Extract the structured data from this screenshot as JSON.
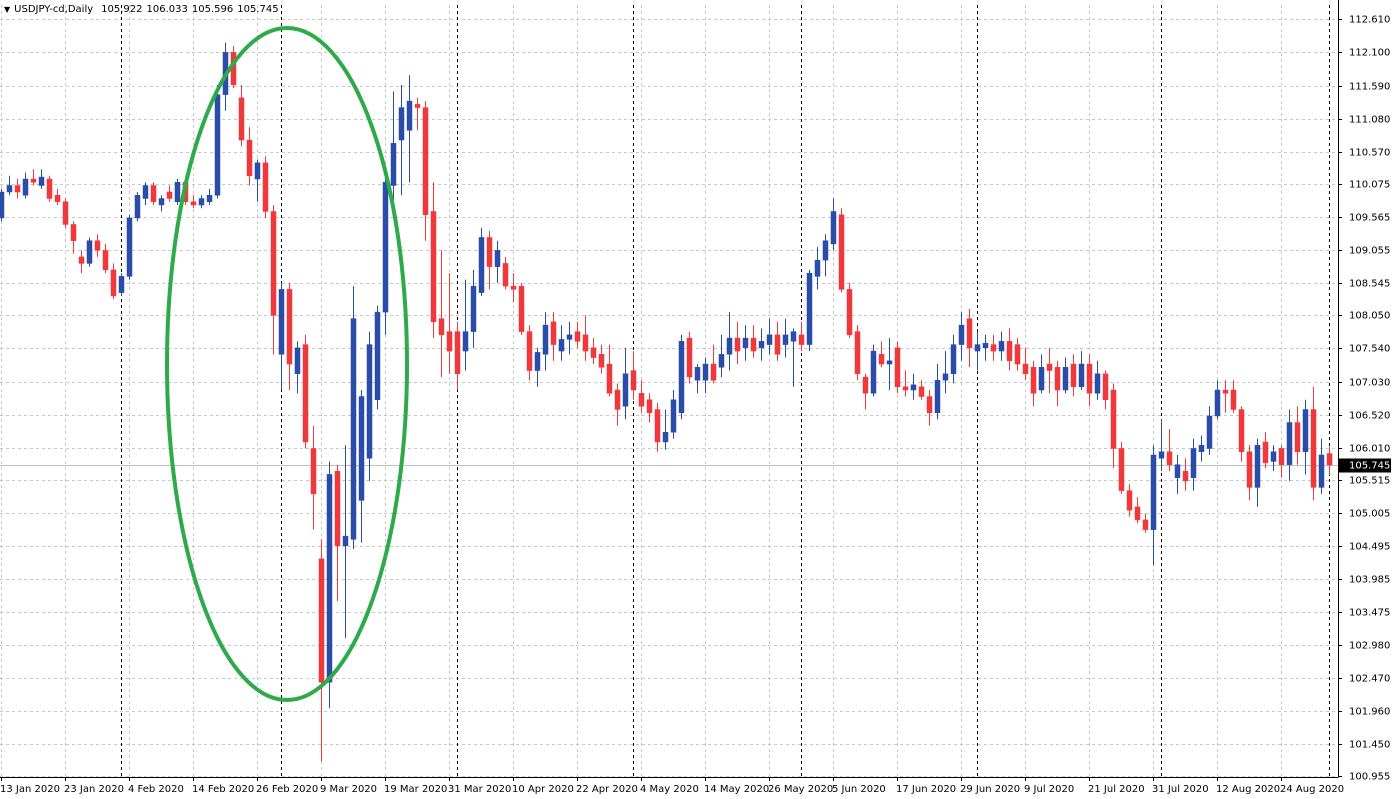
{
  "chart_data": {
    "type": "candlestick",
    "title": "USDJPY-cd,Daily",
    "categories": [
      "13 Jan 2020",
      null,
      null,
      null,
      null,
      null,
      null,
      null,
      "23 Jan 2020",
      null,
      null,
      null,
      null,
      null,
      null,
      null,
      "4 Feb 2020",
      null,
      null,
      null,
      null,
      null,
      null,
      null,
      "14 Feb 2020",
      null,
      null,
      null,
      null,
      null,
      null,
      null,
      "26 Feb 2020",
      null,
      null,
      null,
      null,
      null,
      null,
      null,
      "9 Mar 2020",
      null,
      null,
      null,
      null,
      null,
      null,
      null,
      "19 Mar 2020",
      null,
      null,
      null,
      null,
      null,
      null,
      null,
      "31 Mar 2020",
      null,
      null,
      null,
      null,
      null,
      null,
      null,
      "10 Apr 2020",
      null,
      null,
      null,
      null,
      null,
      null,
      null,
      "22 Apr 2020",
      null,
      null,
      null,
      null,
      null,
      null,
      null,
      "4 May 2020",
      null,
      null,
      null,
      null,
      null,
      null,
      null,
      "14 May 2020",
      null,
      null,
      null,
      null,
      null,
      null,
      null,
      "26 May 2020",
      null,
      null,
      null,
      null,
      null,
      null,
      null,
      "5 Jun 2020",
      null,
      null,
      null,
      null,
      null,
      null,
      null,
      "17 Jun 2020",
      null,
      null,
      null,
      null,
      null,
      null,
      null,
      "29 Jun 2020",
      null,
      null,
      null,
      null,
      null,
      null,
      null,
      "9 Jul 2020",
      null,
      null,
      null,
      null,
      null,
      null,
      null,
      "21 Jul 2020",
      null,
      null,
      null,
      null,
      null,
      null,
      null,
      "31 Jul 2020",
      null,
      null,
      null,
      null,
      null,
      null,
      null,
      "12 Aug 2020",
      null,
      null,
      null,
      null,
      null,
      null,
      null,
      "24 Aug 2020",
      null,
      null,
      null,
      null,
      null,
      null
    ],
    "open": [
      109.55,
      109.95,
      110.05,
      109.9,
      110.15,
      110.05,
      110.15,
      109.9,
      109.8,
      109.45,
      108.95,
      108.85,
      109.2,
      109.05,
      108.75,
      108.4,
      108.65,
      109.55,
      109.85,
      110.05,
      109.75,
      109.95,
      109.8,
      110.1,
      109.8,
      109.75,
      109.8,
      109.9,
      111.45,
      112.1,
      111.4,
      110.75,
      110.15,
      110.4,
      109.65,
      107.45,
      108.45,
      107.15,
      107.6,
      106.0,
      104.3,
      102.4,
      105.65,
      104.5,
      104.6,
      105.2,
      105.85,
      106.75,
      108.1,
      110.05,
      110.75,
      110.9,
      111.3,
      111.25,
      109.65,
      108.0,
      107.8,
      107.8,
      107.5,
      107.8,
      108.4,
      109.25,
      108.8,
      108.85,
      108.5,
      108.5,
      107.8,
      107.2,
      107.45,
      107.95,
      107.5,
      107.68,
      107.8,
      107.75,
      107.55,
      107.45,
      107.3,
      106.9,
      106.65,
      107.2,
      106.85,
      106.75,
      106.6,
      106.1,
      106.25,
      106.55,
      107.7,
      107.05,
      107.05,
      107.3,
      107.25,
      107.45,
      107.7,
      107.55,
      107.7,
      107.55,
      107.6,
      107.75,
      107.6,
      107.65,
      107.75,
      107.6,
      108.65,
      108.9,
      109.15,
      109.6,
      108.45,
      107.8,
      107.1,
      106.85,
      107.45,
      107.3,
      107.55,
      106.95,
      106.9,
      106.95,
      106.8,
      106.55,
      107.05,
      107.15,
      107.6,
      108.0,
      107.5,
      107.55,
      107.6,
      107.5,
      107.65,
      107.6,
      107.3,
      107.25,
      106.9,
      107.3,
      107.25,
      106.9,
      107.3,
      106.95,
      107.3,
      106.85,
      107.15,
      106.9,
      106.0,
      105.35,
      105.1,
      104.9,
      104.75,
      105.85,
      105.95,
      105.55,
      105.65,
      105.55,
      105.95,
      106.0,
      106.5,
      106.9,
      106.9,
      106.6,
      105.95,
      105.4,
      106.1,
      105.8,
      106.0,
      105.75,
      106.4,
      105.95,
      106.6,
      105.4,
      105.922
    ],
    "high": [
      110.0,
      110.2,
      110.15,
      110.25,
      110.3,
      110.3,
      110.2,
      110.0,
      109.85,
      109.5,
      109.05,
      109.25,
      109.3,
      109.15,
      108.85,
      108.7,
      109.6,
      109.95,
      110.1,
      110.1,
      109.9,
      110.05,
      110.15,
      110.15,
      109.9,
      109.9,
      110.0,
      111.6,
      112.25,
      112.2,
      111.6,
      110.95,
      110.45,
      110.5,
      109.75,
      108.55,
      108.55,
      107.65,
      107.75,
      106.35,
      104.6,
      105.8,
      105.75,
      106.05,
      108.5,
      106.9,
      107.8,
      108.2,
      110.35,
      111.5,
      111.6,
      111.75,
      111.4,
      111.35,
      110.1,
      109.05,
      108.7,
      107.95,
      108.6,
      108.75,
      109.4,
      109.35,
      109.2,
      108.95,
      108.7,
      108.55,
      107.9,
      107.55,
      108.1,
      108.1,
      107.9,
      107.95,
      107.95,
      108.05,
      107.7,
      107.6,
      107.6,
      107.0,
      107.55,
      107.5,
      107.05,
      106.85,
      106.7,
      106.6,
      106.9,
      107.75,
      107.8,
      107.3,
      107.4,
      107.6,
      107.75,
      108.1,
      107.95,
      107.9,
      107.9,
      107.85,
      108.0,
      107.95,
      108.0,
      107.85,
      107.95,
      108.75,
      109.1,
      109.3,
      109.85,
      109.7,
      108.55,
      107.9,
      107.15,
      107.6,
      107.65,
      107.7,
      107.65,
      107.2,
      107.15,
      107.05,
      106.9,
      107.3,
      107.5,
      107.75,
      108.1,
      108.15,
      107.8,
      107.75,
      107.75,
      107.8,
      107.85,
      107.7,
      107.55,
      107.35,
      107.45,
      107.55,
      107.35,
      107.4,
      107.45,
      107.5,
      107.45,
      107.35,
      107.2,
      107.0,
      106.1,
      105.45,
      105.25,
      105.0,
      106.05,
      106.45,
      106.3,
      105.9,
      105.85,
      106.15,
      106.2,
      106.65,
      107.05,
      107.05,
      107.05,
      106.65,
      106.05,
      106.15,
      106.25,
      106.05,
      106.05,
      106.6,
      106.65,
      106.75,
      106.95,
      106.15,
      106.033
    ],
    "low": [
      109.5,
      109.9,
      109.85,
      109.85,
      110.05,
      110.0,
      109.8,
      109.75,
      109.4,
      109.0,
      108.7,
      108.8,
      108.95,
      108.7,
      108.3,
      108.35,
      108.6,
      109.5,
      109.75,
      109.75,
      109.65,
      109.8,
      109.75,
      109.75,
      109.7,
      109.7,
      109.75,
      109.85,
      111.2,
      111.55,
      110.65,
      110.05,
      109.8,
      109.55,
      107.45,
      106.9,
      106.9,
      106.85,
      106.0,
      104.75,
      101.18,
      102.0,
      103.65,
      103.08,
      104.45,
      104.55,
      105.5,
      106.6,
      107.75,
      109.65,
      109.9,
      110.1,
      110.9,
      109.2,
      107.7,
      107.1,
      107.15,
      106.9,
      107.2,
      107.55,
      108.35,
      108.45,
      108.55,
      108.45,
      108.25,
      107.75,
      107.05,
      106.95,
      107.2,
      107.35,
      107.35,
      107.45,
      107.55,
      107.35,
      107.3,
      107.15,
      106.8,
      106.35,
      106.45,
      106.75,
      106.55,
      106.4,
      105.95,
      105.98,
      106.15,
      106.45,
      107.0,
      106.85,
      106.85,
      107.0,
      107.1,
      107.2,
      107.3,
      107.35,
      107.4,
      107.35,
      107.45,
      107.35,
      107.4,
      106.95,
      107.5,
      107.5,
      108.45,
      108.65,
      109.05,
      108.4,
      107.7,
      107.05,
      106.6,
      106.8,
      107.25,
      106.9,
      106.85,
      106.8,
      106.75,
      106.75,
      106.35,
      106.45,
      106.85,
      107.0,
      107.35,
      107.25,
      107.2,
      107.35,
      107.35,
      107.35,
      107.2,
      107.2,
      107.05,
      106.65,
      106.85,
      106.85,
      106.65,
      106.85,
      106.8,
      106.9,
      106.65,
      106.75,
      106.6,
      105.7,
      105.3,
      104.95,
      104.85,
      104.7,
      104.2,
      105.65,
      105.65,
      105.3,
      105.35,
      105.35,
      105.8,
      105.9,
      106.45,
      106.55,
      106.55,
      105.8,
      105.2,
      105.1,
      105.7,
      105.65,
      105.55,
      105.5,
      105.75,
      105.6,
      105.2,
      105.3,
      105.596
    ],
    "close": [
      109.95,
      110.05,
      109.95,
      110.15,
      110.1,
      110.18,
      109.85,
      109.8,
      109.45,
      109.2,
      108.85,
      109.2,
      109.05,
      108.75,
      108.35,
      108.65,
      109.55,
      109.9,
      110.05,
      109.8,
      109.85,
      109.85,
      110.1,
      109.8,
      109.75,
      109.85,
      109.9,
      111.45,
      112.1,
      111.6,
      110.75,
      110.2,
      110.4,
      109.65,
      108.05,
      108.45,
      107.3,
      107.55,
      106.1,
      105.3,
      102.4,
      105.6,
      104.5,
      104.65,
      108.0,
      106.8,
      107.6,
      108.1,
      110.1,
      110.7,
      111.25,
      111.35,
      111.25,
      109.6,
      107.95,
      107.75,
      107.5,
      107.15,
      107.8,
      108.5,
      109.25,
      108.8,
      109.05,
      108.5,
      108.45,
      107.8,
      107.2,
      107.48,
      107.9,
      107.6,
      107.68,
      107.75,
      107.65,
      107.5,
      107.4,
      107.25,
      106.85,
      106.6,
      107.15,
      106.9,
      106.65,
      106.55,
      106.1,
      106.25,
      106.75,
      107.65,
      107.1,
      107.25,
      107.3,
      107.05,
      107.45,
      107.7,
      107.5,
      107.7,
      107.5,
      107.65,
      107.75,
      107.45,
      107.75,
      107.8,
      107.6,
      108.7,
      108.9,
      109.2,
      109.65,
      108.45,
      107.75,
      107.15,
      106.85,
      107.5,
      107.3,
      107.35,
      106.95,
      106.9,
      106.98,
      106.8,
      106.55,
      107.05,
      107.15,
      107.6,
      107.9,
      107.55,
      107.6,
      107.62,
      107.5,
      107.65,
      107.35,
      107.3,
      107.15,
      106.85,
      107.25,
      107.2,
      106.9,
      107.25,
      106.95,
      107.3,
      106.85,
      107.15,
      106.75,
      106.0,
      105.35,
      105.05,
      104.9,
      104.75,
      105.9,
      105.95,
      105.75,
      105.75,
      105.5,
      106.0,
      106.05,
      106.5,
      106.9,
      106.85,
      106.6,
      105.95,
      105.4,
      106.05,
      105.78,
      105.95,
      105.75,
      106.4,
      105.95,
      106.6,
      105.4,
      105.9,
      105.745
    ],
    "up_color": "#2a4da8",
    "down_color": "#f0393c",
    "ylim": [
      100.94,
      112.83
    ],
    "yticks": [
      {
        "value": 112.61,
        "label": "112.610"
      },
      {
        "value": 112.1,
        "label": "112.100"
      },
      {
        "value": 111.59,
        "label": "111.590"
      },
      {
        "value": 111.08,
        "label": "111.080"
      },
      {
        "value": 110.57,
        "label": "110.570"
      },
      110.075,
      109.565,
      109.055,
      108.545,
      {
        "value": 108.05,
        "label": "108.050"
      },
      {
        "value": 107.54,
        "label": "107.540"
      },
      {
        "value": 107.03,
        "label": "107.030"
      },
      {
        "value": 106.52,
        "label": "106.520"
      },
      {
        "value": 106.01,
        "label": "106.010"
      },
      105.515,
      105.005,
      104.495,
      103.985,
      103.475,
      {
        "value": 102.98,
        "label": "102.980"
      },
      {
        "value": 102.47,
        "label": "102.470"
      },
      {
        "value": 101.96,
        "label": "101.960"
      },
      {
        "value": 101.45,
        "label": "101.450"
      },
      100.955
    ],
    "grid": true
  }
}
